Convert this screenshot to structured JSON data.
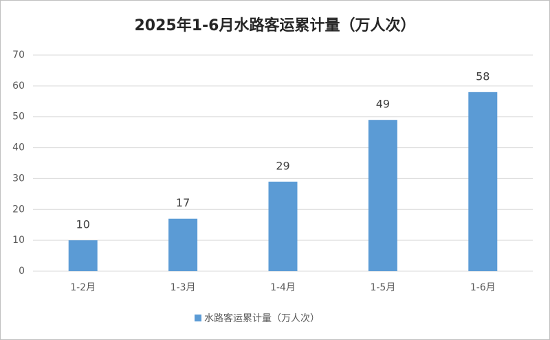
{
  "chart_data": {
    "type": "bar",
    "title": "2025年1-6月水路客运累计量（万人次）",
    "categories": [
      "1-2月",
      "1-3月",
      "1-4月",
      "1-5月",
      "1-6月"
    ],
    "series": [
      {
        "name": "水路客运累计量（万人次）",
        "color": "#5b9bd5",
        "values": [
          10,
          17,
          29,
          49,
          58
        ]
      }
    ],
    "ylim": [
      0,
      70
    ],
    "yticks": [
      0,
      10,
      20,
      30,
      40,
      50,
      60,
      70
    ],
    "grid": true,
    "data_labels": true,
    "legend": "bottom"
  }
}
